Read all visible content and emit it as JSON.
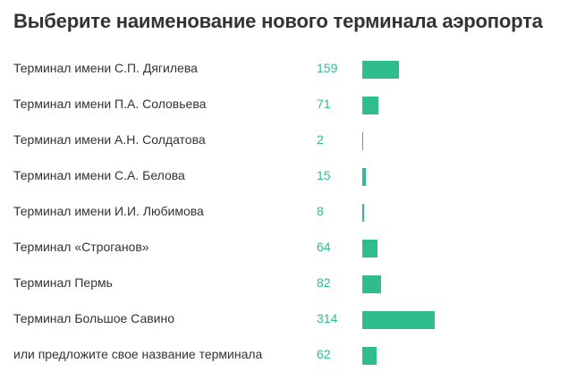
{
  "poll": {
    "title": "Выберите наименование нового терминала аэропорта",
    "accent_color": "#2ebd8b"
  },
  "chart_data": {
    "type": "bar",
    "orientation": "horizontal",
    "title": "Выберите наименование нового терминала аэропорта",
    "categories": [
      "Терминал имени С.П. Дягилева",
      "Терминал имени П.А. Соловьева",
      "Терминал имени А.Н. Солдатова",
      "Терминал имени С.А. Белова",
      "Терминал имени И.И. Любимова",
      "Терминал «Строганов»",
      "Терминал Пермь",
      "Терминал Большое Савино",
      "или предложите свое название терминала"
    ],
    "values": [
      159,
      71,
      2,
      15,
      8,
      64,
      82,
      314,
      62
    ],
    "xlim": [
      0,
      314
    ],
    "grid": false,
    "legend": "none"
  }
}
